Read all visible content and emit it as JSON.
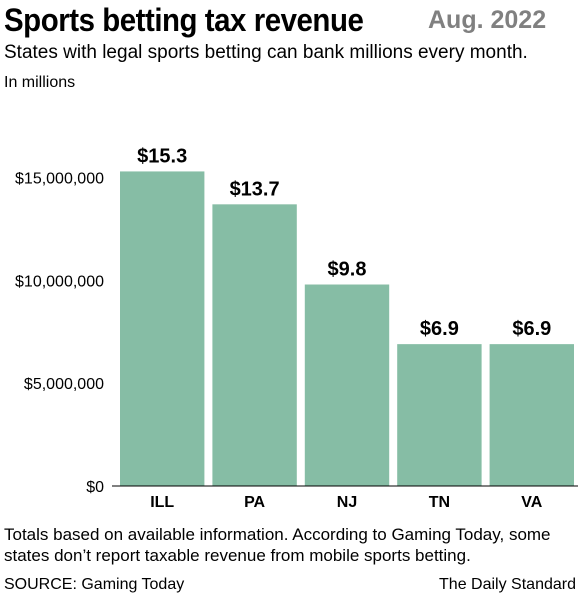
{
  "header": {
    "title": "Sports betting tax revenue",
    "date": "Aug. 2022",
    "subtitle": "States with legal sports betting can bank millions every month.",
    "units": "In millions"
  },
  "chart_data": {
    "type": "bar",
    "categories": [
      "ILL",
      "PA",
      "NJ",
      "TN",
      "VA"
    ],
    "values": [
      15300000,
      13700000,
      9800000,
      6900000,
      6900000
    ],
    "data_labels": [
      "$15.3",
      "$13.7",
      "$9.8",
      "$6.9",
      "$6.9"
    ],
    "y_ticks": [
      0,
      5000000,
      10000000,
      15000000
    ],
    "y_tick_labels": [
      "$0",
      "$5,000,000",
      "$10,000,000",
      "$15,000,000"
    ],
    "ylim": [
      0,
      17000000
    ],
    "bar_color": "#86bda5",
    "grid": false,
    "title": "Sports betting tax revenue",
    "xlabel": "",
    "ylabel": ""
  },
  "footer": {
    "note": "Totals based on available information. According to Gaming Today, some states don’t report taxable revenue from mobile sports betting.",
    "source": "SOURCE: Gaming Today",
    "credit": "The Daily Standard"
  }
}
